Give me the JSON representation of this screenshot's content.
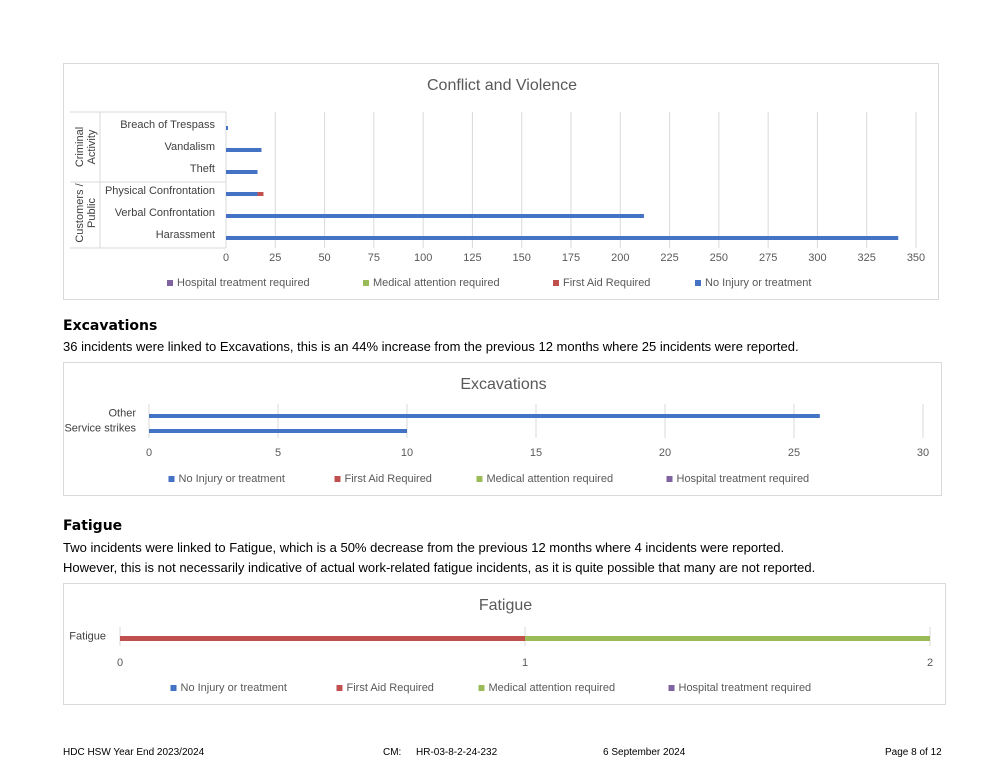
{
  "series_colors": {
    "No Injury or treatment": "#4472c4",
    "First Aid Required": "#c0504d",
    "Medical attention required": "#9bbb59",
    "Hospital treatment required": "#8064a2"
  },
  "sections": {
    "excavations": {
      "heading": "Excavations",
      "text": "36 incidents were linked to Excavations, this is an 44% increase from the previous 12 months where 25 incidents were reported."
    },
    "fatigue": {
      "heading": "Fatigue",
      "text1": "Two incidents were linked to Fatigue, which is a 50% decrease from the previous 12 months where 4 incidents were reported.",
      "text2": "However, this is not necessarily indicative of actual work-related fatigue incidents, as it is quite possible that many are not reported."
    }
  },
  "footer": {
    "doc_title": "HDC HSW Year End 2023/2024",
    "cm_label": "CM:",
    "cm_value": "HR-03-8-2-24-232",
    "date": "6 September 2024",
    "page": "Page 8 of 12"
  },
  "chart_data": [
    {
      "type": "bar",
      "orientation": "horizontal",
      "stacked": true,
      "title": "Conflict and Violence",
      "groups": [
        {
          "label": "Criminal Activity",
          "categories": [
            "Breach of Trespass",
            "Vandalism",
            "Theft"
          ]
        },
        {
          "label": "Customers / Public",
          "categories": [
            "Physical Confrontation",
            "Verbal Confrontation",
            "Harassment"
          ]
        }
      ],
      "categories": [
        "Breach of Trespass",
        "Vandalism",
        "Theft",
        "Physical Confrontation",
        "Verbal Confrontation",
        "Harassment"
      ],
      "series": [
        {
          "name": "No Injury or treatment",
          "values": [
            1,
            18,
            16,
            16,
            212,
            341
          ]
        },
        {
          "name": "First Aid Required",
          "values": [
            0,
            0,
            0,
            3,
            0,
            0
          ]
        },
        {
          "name": "Medical attention required",
          "values": [
            0,
            0,
            0,
            0,
            0,
            0
          ]
        },
        {
          "name": "Hospital treatment required",
          "values": [
            0,
            0,
            0,
            0,
            0,
            0
          ]
        }
      ],
      "xlim": [
        0,
        350
      ],
      "xticks": [
        0,
        25,
        50,
        75,
        100,
        125,
        150,
        175,
        200,
        225,
        250,
        275,
        300,
        325,
        350
      ],
      "legend_order": [
        "Hospital treatment required",
        "Medical attention required",
        "First Aid Required",
        "No Injury or treatment"
      ],
      "legend": "bottom",
      "grid": true
    },
    {
      "type": "bar",
      "orientation": "horizontal",
      "stacked": true,
      "title": "Excavations",
      "categories": [
        "Other",
        "Service strikes"
      ],
      "series": [
        {
          "name": "No Injury or treatment",
          "values": [
            26,
            10
          ]
        },
        {
          "name": "First Aid Required",
          "values": [
            0,
            0
          ]
        },
        {
          "name": "Medical attention required",
          "values": [
            0,
            0
          ]
        },
        {
          "name": "Hospital treatment required",
          "values": [
            0,
            0
          ]
        }
      ],
      "xlim": [
        0,
        30
      ],
      "xticks": [
        0,
        5,
        10,
        15,
        20,
        25,
        30
      ],
      "legend_order": [
        "No Injury or treatment",
        "First Aid Required",
        "Medical attention required",
        "Hospital treatment required"
      ],
      "legend": "bottom",
      "grid": true
    },
    {
      "type": "bar",
      "orientation": "horizontal",
      "stacked": true,
      "title": "Fatigue",
      "categories": [
        "Fatigue"
      ],
      "series": [
        {
          "name": "No Injury or treatment",
          "values": [
            0
          ]
        },
        {
          "name": "First Aid Required",
          "values": [
            1
          ]
        },
        {
          "name": "Medical attention required",
          "values": [
            1
          ]
        },
        {
          "name": "Hospital treatment required",
          "values": [
            0
          ]
        }
      ],
      "xlim": [
        0,
        2
      ],
      "xticks": [
        0,
        1,
        2
      ],
      "legend_order": [
        "No Injury or treatment",
        "First Aid Required",
        "Medical attention required",
        "Hospital treatment required"
      ],
      "legend": "bottom",
      "grid": true
    }
  ]
}
